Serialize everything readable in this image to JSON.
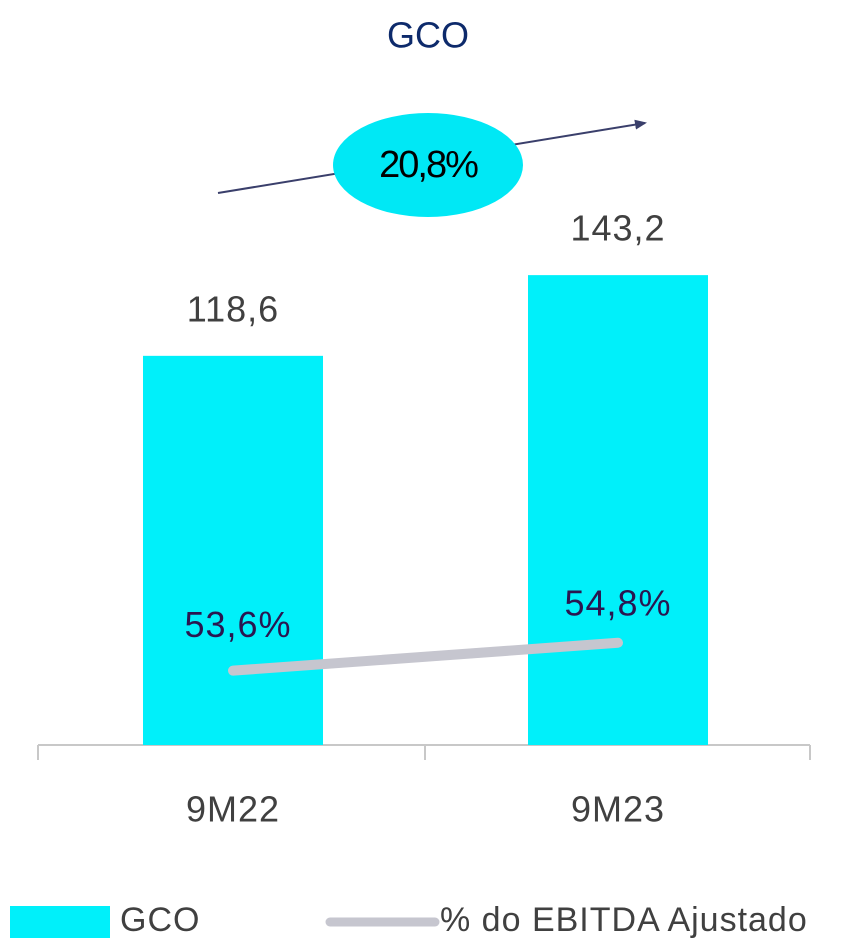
{
  "chart_data": {
    "type": "bar",
    "title": "GCO",
    "annotation": "20,8%",
    "categories": [
      "9M22",
      "9M23"
    ],
    "series": [
      {
        "name": "GCO",
        "type": "bar",
        "color": "#00f0fa",
        "values": [
          118.6,
          143.2
        ],
        "value_labels": [
          "118,6",
          "143,2"
        ]
      },
      {
        "name": "% do EBITDA Ajustado",
        "type": "line",
        "axis": "y2",
        "color": "#c6c6cf",
        "values": [
          53.6,
          54.8
        ],
        "value_labels": [
          "53,6%",
          "54,8%"
        ]
      }
    ],
    "ylim": [
      0,
      160
    ],
    "y2lim": [
      50.4,
      73
    ],
    "legend": "bottom"
  }
}
